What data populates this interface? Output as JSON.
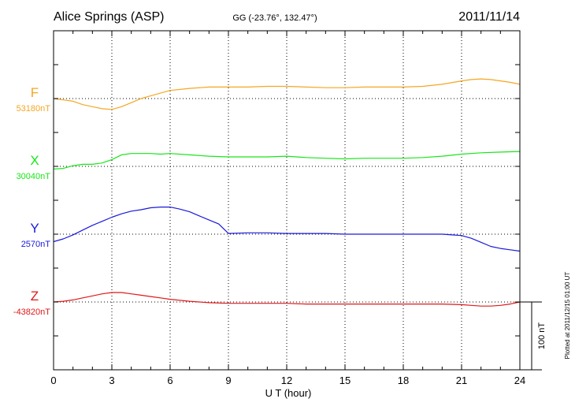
{
  "header": {
    "station": "Alice Springs (ASP)",
    "coords": "GG (-23.76°, 132.47°)",
    "date": "2011/11/14"
  },
  "footer": {
    "plotted": "Plotted at 2011/12/15 01:00 UT"
  },
  "scale": {
    "label": "100 nT",
    "nT": 100
  },
  "chart_data": {
    "type": "line",
    "title": "Alice Springs (ASP)",
    "subtitle": "GG (-23.76°, 132.47°)",
    "date": "2011/11/14",
    "xlabel": "U T (hour)",
    "xlim": [
      0,
      24
    ],
    "xticks": [
      "0",
      "3",
      "6",
      "9",
      "12",
      "15",
      "18",
      "21",
      "24"
    ],
    "grid": true,
    "ylabel": "",
    "series": [
      {
        "name": "F",
        "baseline_label": "53180nT",
        "baseline_nT": 53180,
        "color": "#f5a623",
        "x": [
          0,
          0.5,
          1,
          1.5,
          2,
          2.5,
          3,
          3.5,
          4,
          4.5,
          5,
          5.5,
          6,
          7,
          8,
          9,
          10,
          11,
          12,
          13,
          14,
          15,
          16,
          17,
          18,
          19,
          20,
          21,
          21.5,
          22,
          22.5,
          23,
          23.5,
          24
        ],
        "y": [
          53180,
          53178,
          53176,
          53171,
          53168,
          53165,
          53164,
          53168,
          53174,
          53180,
          53184,
          53188,
          53192,
          53195,
          53197,
          53197,
          53197,
          53198,
          53198,
          53197,
          53196,
          53196,
          53197,
          53197,
          53197,
          53198,
          53201,
          53206,
          53208,
          53209,
          53208,
          53206,
          53204,
          53201
        ]
      },
      {
        "name": "X",
        "baseline_label": "30040nT",
        "baseline_nT": 30040,
        "color": "#19e619",
        "x": [
          0,
          0.5,
          1,
          1.5,
          2,
          2.5,
          3,
          3.5,
          4,
          4.5,
          5,
          5.5,
          6,
          7,
          8,
          9,
          10,
          11,
          12,
          13,
          14,
          15,
          16,
          17,
          18,
          19,
          20,
          21,
          22,
          23,
          24
        ],
        "y": [
          30036,
          30037,
          30041,
          30043,
          30043,
          30045,
          30050,
          30057,
          30059,
          30059,
          30059,
          30058,
          30059,
          30057,
          30055,
          30054,
          30054,
          30054,
          30055,
          30053,
          30052,
          30051,
          30052,
          30052,
          30052,
          30053,
          30055,
          30058,
          30060,
          30061,
          30062
        ]
      },
      {
        "name": "Y",
        "baseline_label": "2570nT",
        "baseline_nT": 2570,
        "color": "#1a1adb",
        "x": [
          0,
          0.5,
          1,
          1.5,
          2,
          2.5,
          3,
          3.5,
          4,
          4.5,
          5,
          5.5,
          6,
          6.5,
          7,
          7.5,
          8,
          8.5,
          9,
          10,
          11,
          12,
          13,
          14,
          15,
          16,
          17,
          18,
          19,
          20,
          20.5,
          21,
          21.5,
          22,
          22.5,
          23,
          23.5,
          24
        ],
        "y": [
          2559,
          2563,
          2569,
          2576,
          2583,
          2589,
          2595,
          2600,
          2604,
          2606,
          2609,
          2610,
          2610,
          2607,
          2603,
          2597,
          2591,
          2585,
          2571,
          2572,
          2572,
          2571,
          2571,
          2571,
          2570,
          2570,
          2570,
          2570,
          2570,
          2570,
          2569,
          2568,
          2564,
          2558,
          2552,
          2549,
          2547,
          2545
        ]
      },
      {
        "name": "Z",
        "baseline_label": "-43820nT",
        "baseline_nT": -43820,
        "color": "#e01818",
        "x": [
          0,
          0.5,
          1,
          1.5,
          2,
          2.5,
          3,
          3.5,
          4,
          4.5,
          5,
          5.5,
          6,
          7,
          8,
          9,
          10,
          11,
          12,
          13,
          14,
          15,
          16,
          17,
          18,
          19,
          20,
          21,
          21.5,
          22,
          22.5,
          23,
          23.5,
          24
        ],
        "y": [
          -43820,
          -43819,
          -43817,
          -43814,
          -43811,
          -43808,
          -43806,
          -43806,
          -43808,
          -43810,
          -43812,
          -43814,
          -43816,
          -43819,
          -43821,
          -43822,
          -43822,
          -43822,
          -43822,
          -43823,
          -43823,
          -43823,
          -43823,
          -43823,
          -43823,
          -43823,
          -43823,
          -43824,
          -43825,
          -43826,
          -43826,
          -43825,
          -43823,
          -43820
        ]
      }
    ]
  }
}
